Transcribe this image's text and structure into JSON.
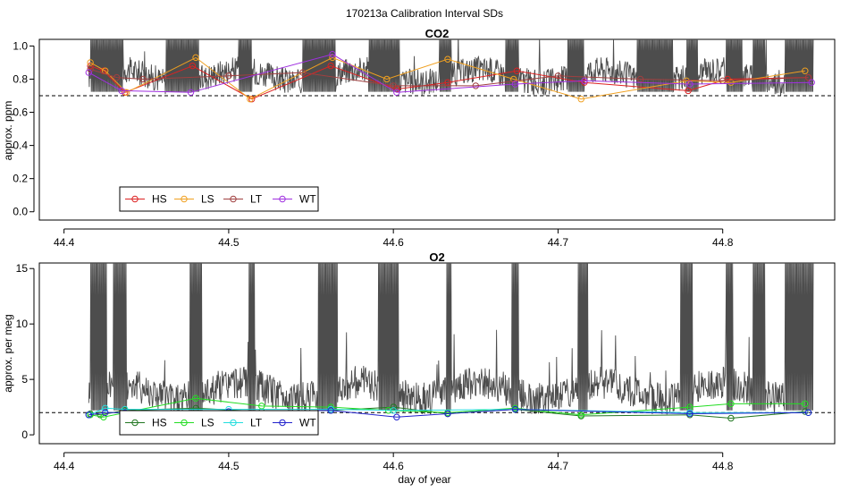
{
  "figure_title": "170213a   Calibration Interval SDs",
  "chart_data": [
    {
      "type": "line",
      "title": "CO2",
      "xlabel": "",
      "ylabel": "approx. ppm",
      "xlim": [
        44.4,
        44.86
      ],
      "ylim": [
        0,
        1.0
      ],
      "xticks": [
        44.4,
        44.5,
        44.6,
        44.7,
        44.8
      ],
      "xtick_labels": [
        "44.4",
        "44.5",
        "44.6",
        "44.7",
        "44.8"
      ],
      "yticks": [
        0,
        0.2,
        0.4,
        0.6,
        0.8,
        1.0
      ],
      "ytick_labels": [
        "0.0",
        "0.2",
        "0.4",
        "0.6",
        "0.8",
        "1.0"
      ],
      "threshold": 0.7,
      "legend": {
        "placement": "bottom-left",
        "entries": [
          "HS",
          "LS",
          "LT",
          "WT"
        ]
      },
      "background_trace": {
        "name": "measured SD trace",
        "color": "#4d4d4d",
        "baseline": 0.82,
        "noise": 0.08,
        "spike_top": 1.05,
        "spike_ranges": [
          [
            44.416,
            44.436
          ],
          [
            44.462,
            44.482
          ],
          [
            44.506,
            44.514
          ],
          [
            44.545,
            44.565
          ],
          [
            44.585,
            44.604
          ],
          [
            44.628,
            44.635
          ],
          [
            44.668,
            44.676
          ],
          [
            44.706,
            44.716
          ],
          [
            44.748,
            44.77
          ],
          [
            44.778,
            44.785
          ],
          [
            44.802,
            44.812
          ],
          [
            44.818,
            44.826
          ],
          [
            44.838,
            44.855
          ]
        ]
      },
      "series": [
        {
          "name": "HS",
          "color": "#dd2222",
          "x": [
            44.416,
            44.424,
            44.437,
            44.478,
            44.514,
            44.562,
            44.602,
            44.633,
            44.675,
            44.716,
            44.779,
            44.803,
            44.852
          ],
          "y": [
            0.88,
            0.85,
            0.72,
            0.88,
            0.68,
            0.88,
            0.74,
            0.78,
            0.85,
            0.78,
            0.73,
            0.8,
            0.81
          ]
        },
        {
          "name": "LS",
          "color": "#f0a020",
          "x": [
            44.416,
            44.425,
            44.438,
            44.48,
            44.513,
            44.563,
            44.596,
            44.633,
            44.673,
            44.714,
            44.778,
            44.805,
            44.85
          ],
          "y": [
            0.9,
            0.85,
            0.72,
            0.93,
            0.68,
            0.93,
            0.8,
            0.92,
            0.8,
            0.68,
            0.79,
            0.78,
            0.85
          ]
        },
        {
          "name": "LT",
          "color": "#a04040",
          "x": [
            44.416,
            44.432,
            44.448,
            44.5,
            44.545,
            44.6,
            44.65,
            44.7,
            44.75,
            44.8,
            44.852
          ],
          "y": [
            0.86,
            0.81,
            0.8,
            0.82,
            0.84,
            0.76,
            0.76,
            0.82,
            0.8,
            0.79,
            0.81
          ]
        },
        {
          "name": "WT",
          "color": "#a030e0",
          "x": [
            44.415,
            44.435,
            44.477,
            44.563,
            44.602,
            44.674,
            44.716,
            44.78,
            44.854
          ],
          "y": [
            0.84,
            0.73,
            0.72,
            0.95,
            0.72,
            0.77,
            0.79,
            0.77,
            0.78
          ]
        }
      ]
    },
    {
      "type": "line",
      "title": "O2",
      "xlabel": "day of year",
      "ylabel": "approx. per meg",
      "xlim": [
        44.4,
        44.86
      ],
      "ylim": [
        0,
        15
      ],
      "xticks": [
        44.4,
        44.5,
        44.6,
        44.7,
        44.8
      ],
      "xtick_labels": [
        "44.4",
        "44.5",
        "44.6",
        "44.7",
        "44.8"
      ],
      "yticks": [
        0,
        5,
        10,
        15
      ],
      "ytick_labels": [
        "0",
        "5",
        "10",
        "15"
      ],
      "threshold": 2,
      "legend": {
        "placement": "bottom-left",
        "entries": [
          "HS",
          "LS",
          "LT",
          "WT"
        ]
      },
      "background_trace": {
        "name": "measured SD trace",
        "color": "#4d4d4d",
        "baseline": 4,
        "noise": 1.5,
        "spike_top": 16,
        "spike_ranges": [
          [
            44.416,
            44.426
          ],
          [
            44.43,
            44.438
          ],
          [
            44.476,
            44.484
          ],
          [
            44.512,
            44.516
          ],
          [
            44.554,
            44.566
          ],
          [
            44.591,
            44.603
          ],
          [
            44.632,
            44.635
          ],
          [
            44.672,
            44.676
          ],
          [
            44.712,
            44.718
          ],
          [
            44.774,
            44.782
          ],
          [
            44.802,
            44.806
          ],
          [
            44.818,
            44.826
          ],
          [
            44.838,
            44.855
          ]
        ]
      },
      "series": [
        {
          "name": "HS",
          "color": "#227722",
          "x": [
            44.416,
            44.422,
            44.437,
            44.48,
            44.52,
            44.562,
            44.6,
            44.633,
            44.674,
            44.714,
            44.78,
            44.805,
            44.85
          ],
          "y": [
            1.9,
            1.8,
            2.2,
            2.4,
            2.1,
            2.2,
            2.5,
            1.9,
            2.3,
            1.7,
            1.8,
            1.5,
            2.1
          ]
        },
        {
          "name": "LS",
          "color": "#22dd22",
          "x": [
            44.416,
            44.424,
            44.437,
            44.48,
            44.52,
            44.562,
            44.597,
            44.633,
            44.674,
            44.714,
            44.78,
            44.805,
            44.85
          ],
          "y": [
            1.8,
            1.6,
            2.0,
            3.3,
            2.6,
            2.5,
            2.2,
            2.0,
            2.4,
            1.8,
            2.5,
            2.8,
            2.8
          ]
        },
        {
          "name": "LT",
          "color": "#22dddd",
          "x": [
            44.415,
            44.425,
            44.437,
            44.5,
            44.562,
            44.6,
            44.674,
            44.78,
            44.852
          ],
          "y": [
            1.8,
            2.4,
            2.3,
            2.3,
            2.3,
            2.2,
            2.3,
            2.0,
            2.0
          ]
        },
        {
          "name": "WT",
          "color": "#2222cc",
          "x": [
            44.415,
            44.425,
            44.437,
            44.5,
            44.562,
            44.602,
            44.633,
            44.674,
            44.78,
            44.852
          ],
          "y": [
            1.8,
            2.0,
            2.0,
            2.1,
            2.2,
            1.6,
            1.9,
            2.3,
            1.9,
            2.0
          ]
        }
      ]
    }
  ]
}
